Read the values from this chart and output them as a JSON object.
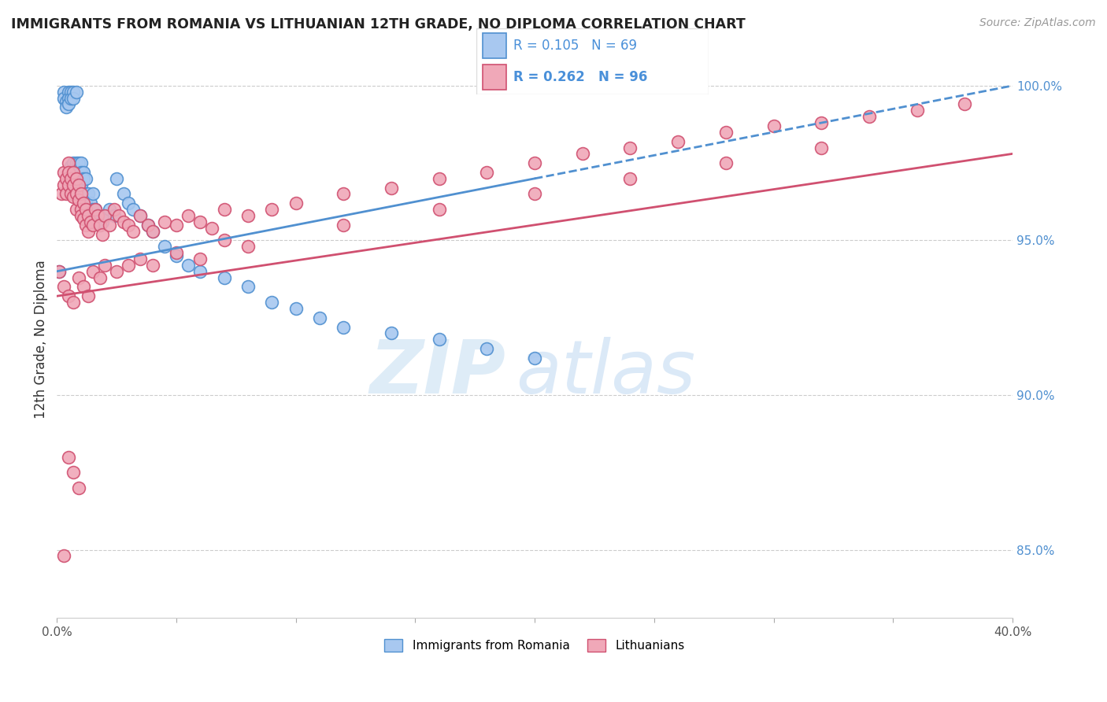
{
  "title": "IMMIGRANTS FROM ROMANIA VS LITHUANIAN 12TH GRADE, NO DIPLOMA CORRELATION CHART",
  "source": "Source: ZipAtlas.com",
  "ylabel": "12th Grade, No Diploma",
  "ytick_labels": [
    "100.0%",
    "95.0%",
    "90.0%",
    "85.0%"
  ],
  "ytick_values": [
    1.0,
    0.95,
    0.9,
    0.85
  ],
  "xlim": [
    0.0,
    0.4
  ],
  "ylim": [
    0.828,
    1.008
  ],
  "legend_blue_R": "R = 0.105",
  "legend_blue_N": "N = 69",
  "legend_pink_R": "R = 0.262",
  "legend_pink_N": "N = 96",
  "blue_color": "#a8c8f0",
  "pink_color": "#f0a8b8",
  "blue_line_color": "#5090d0",
  "pink_line_color": "#d05070",
  "legend_text_color": "#4a90d9",
  "watermark_zip": "ZIP",
  "watermark_atlas": "atlas",
  "blue_scatter_x": [
    0.001,
    0.003,
    0.003,
    0.004,
    0.004,
    0.005,
    0.005,
    0.005,
    0.006,
    0.006,
    0.006,
    0.007,
    0.007,
    0.007,
    0.007,
    0.008,
    0.008,
    0.008,
    0.008,
    0.008,
    0.009,
    0.009,
    0.009,
    0.009,
    0.01,
    0.01,
    0.01,
    0.01,
    0.011,
    0.011,
    0.011,
    0.012,
    0.012,
    0.012,
    0.013,
    0.013,
    0.014,
    0.014,
    0.015,
    0.015,
    0.016,
    0.016,
    0.017,
    0.018,
    0.019,
    0.02,
    0.022,
    0.024,
    0.025,
    0.028,
    0.03,
    0.032,
    0.035,
    0.038,
    0.04,
    0.045,
    0.05,
    0.055,
    0.06,
    0.07,
    0.08,
    0.09,
    0.1,
    0.11,
    0.12,
    0.14,
    0.16,
    0.18,
    0.2
  ],
  "blue_scatter_y": [
    0.94,
    0.998,
    0.996,
    0.995,
    0.993,
    0.998,
    0.996,
    0.994,
    0.998,
    0.996,
    0.974,
    0.998,
    0.996,
    0.975,
    0.972,
    0.998,
    0.975,
    0.973,
    0.971,
    0.968,
    0.975,
    0.972,
    0.97,
    0.967,
    0.975,
    0.972,
    0.97,
    0.968,
    0.972,
    0.97,
    0.965,
    0.97,
    0.965,
    0.962,
    0.965,
    0.96,
    0.962,
    0.958,
    0.965,
    0.96,
    0.96,
    0.957,
    0.958,
    0.955,
    0.956,
    0.958,
    0.96,
    0.958,
    0.97,
    0.965,
    0.962,
    0.96,
    0.958,
    0.955,
    0.953,
    0.948,
    0.945,
    0.942,
    0.94,
    0.938,
    0.935,
    0.93,
    0.928,
    0.925,
    0.922,
    0.92,
    0.918,
    0.915,
    0.912
  ],
  "pink_scatter_x": [
    0.001,
    0.002,
    0.003,
    0.003,
    0.004,
    0.004,
    0.005,
    0.005,
    0.005,
    0.006,
    0.006,
    0.007,
    0.007,
    0.007,
    0.008,
    0.008,
    0.008,
    0.009,
    0.009,
    0.01,
    0.01,
    0.01,
    0.011,
    0.011,
    0.012,
    0.012,
    0.013,
    0.013,
    0.014,
    0.015,
    0.016,
    0.017,
    0.018,
    0.019,
    0.02,
    0.022,
    0.024,
    0.026,
    0.028,
    0.03,
    0.032,
    0.035,
    0.038,
    0.04,
    0.045,
    0.05,
    0.055,
    0.06,
    0.065,
    0.07,
    0.08,
    0.09,
    0.1,
    0.12,
    0.14,
    0.16,
    0.18,
    0.2,
    0.22,
    0.24,
    0.26,
    0.28,
    0.3,
    0.32,
    0.34,
    0.36,
    0.38,
    0.003,
    0.005,
    0.007,
    0.009,
    0.011,
    0.013,
    0.015,
    0.018,
    0.02,
    0.025,
    0.03,
    0.035,
    0.04,
    0.05,
    0.06,
    0.07,
    0.08,
    0.12,
    0.16,
    0.2,
    0.24,
    0.28,
    0.32,
    0.003,
    0.005,
    0.007,
    0.009
  ],
  "pink_scatter_y": [
    0.94,
    0.965,
    0.972,
    0.968,
    0.97,
    0.965,
    0.975,
    0.972,
    0.968,
    0.97,
    0.965,
    0.972,
    0.968,
    0.964,
    0.97,
    0.965,
    0.96,
    0.968,
    0.963,
    0.965,
    0.96,
    0.958,
    0.962,
    0.957,
    0.96,
    0.955,
    0.958,
    0.953,
    0.956,
    0.955,
    0.96,
    0.958,
    0.955,
    0.952,
    0.958,
    0.955,
    0.96,
    0.958,
    0.956,
    0.955,
    0.953,
    0.958,
    0.955,
    0.953,
    0.956,
    0.955,
    0.958,
    0.956,
    0.954,
    0.96,
    0.958,
    0.96,
    0.962,
    0.965,
    0.967,
    0.97,
    0.972,
    0.975,
    0.978,
    0.98,
    0.982,
    0.985,
    0.987,
    0.988,
    0.99,
    0.992,
    0.994,
    0.935,
    0.932,
    0.93,
    0.938,
    0.935,
    0.932,
    0.94,
    0.938,
    0.942,
    0.94,
    0.942,
    0.944,
    0.942,
    0.946,
    0.944,
    0.95,
    0.948,
    0.955,
    0.96,
    0.965,
    0.97,
    0.975,
    0.98,
    0.848,
    0.88,
    0.875,
    0.87
  ]
}
